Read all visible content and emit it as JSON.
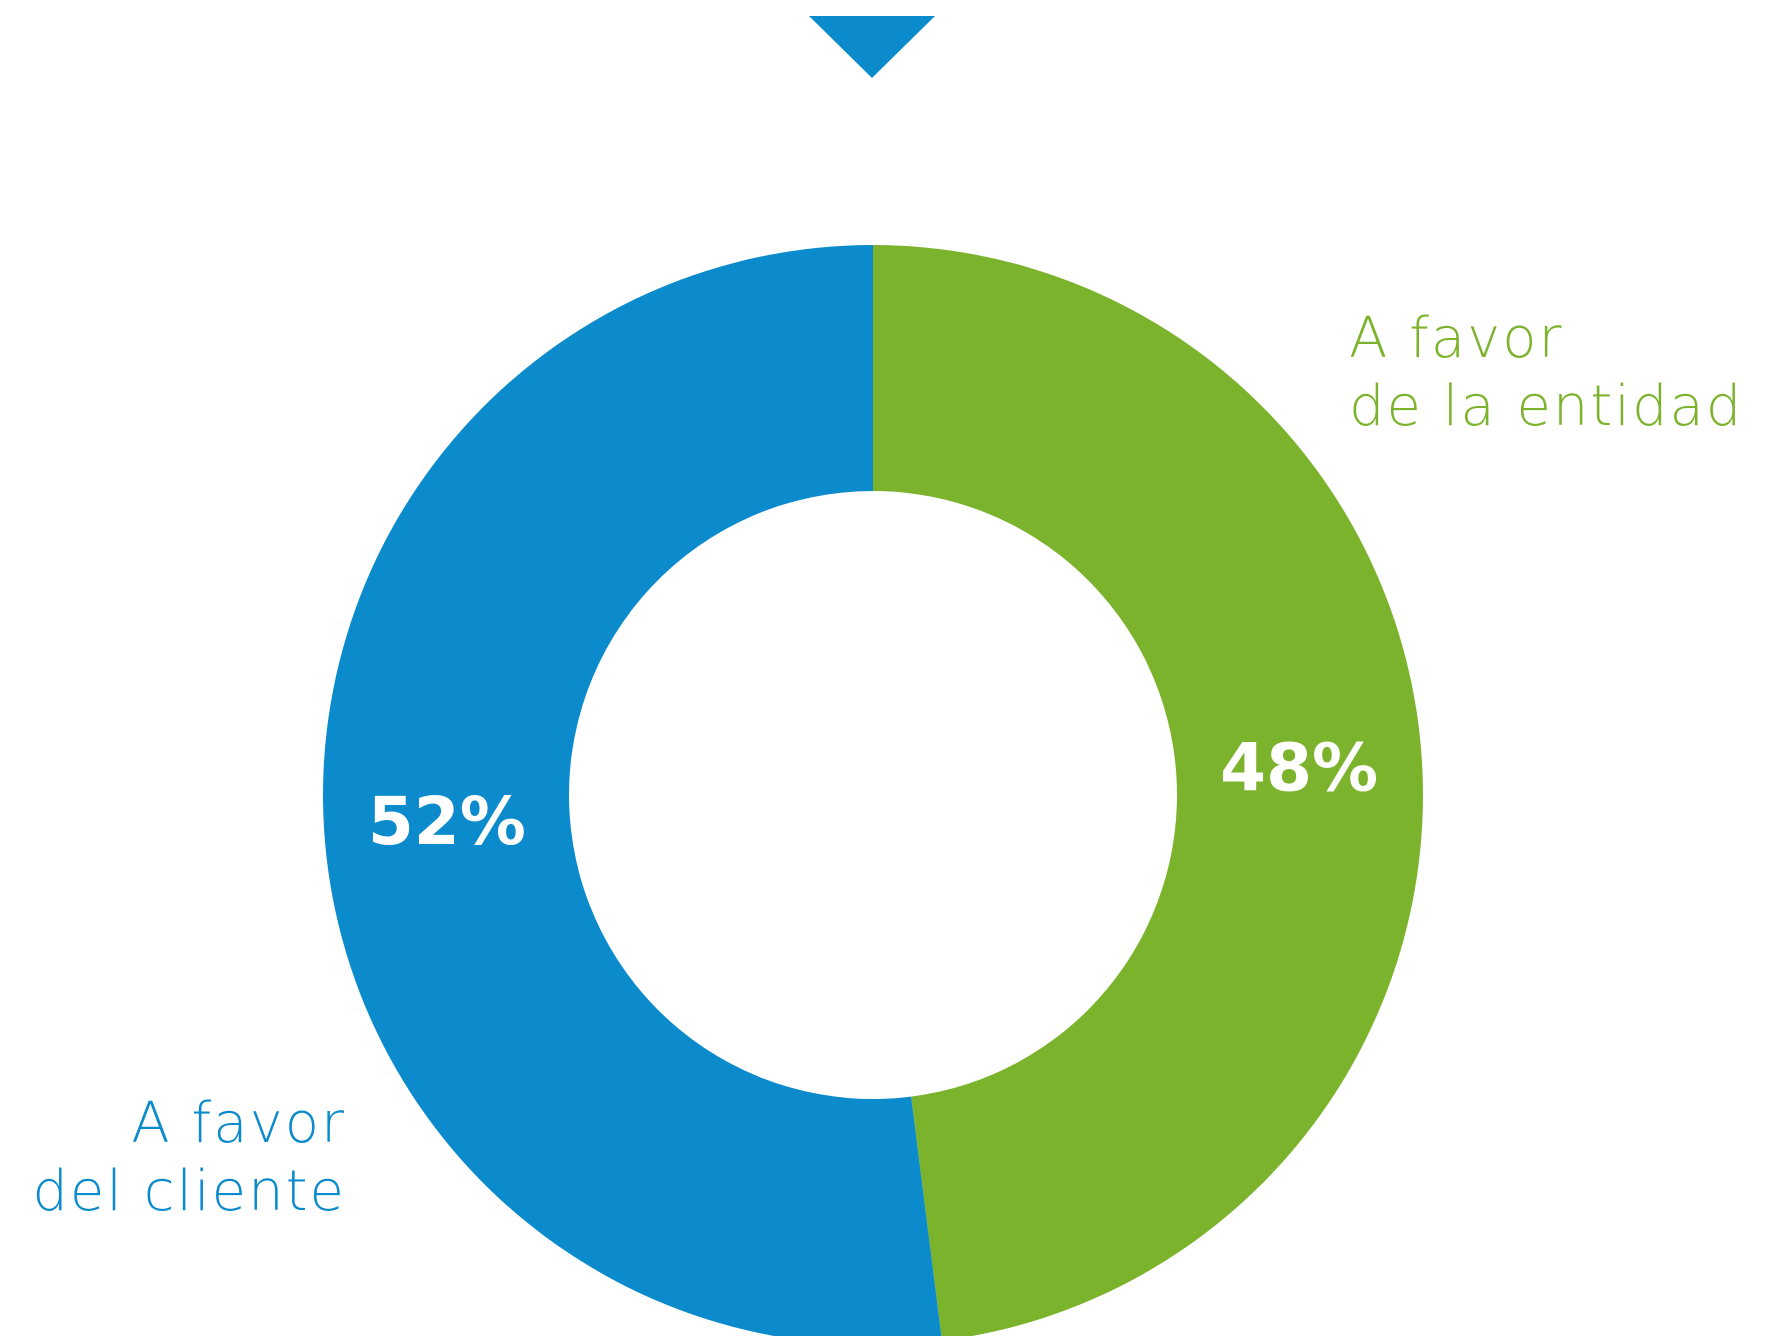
{
  "chart_data": {
    "type": "donut",
    "categories": [
      "A favor\nde la entidad",
      "A favor\ndel cliente"
    ],
    "values": [
      48,
      52
    ],
    "value_labels": [
      "48%",
      "52%"
    ],
    "colors": [
      "#7cb32d",
      "#0b8bcb"
    ]
  }
}
